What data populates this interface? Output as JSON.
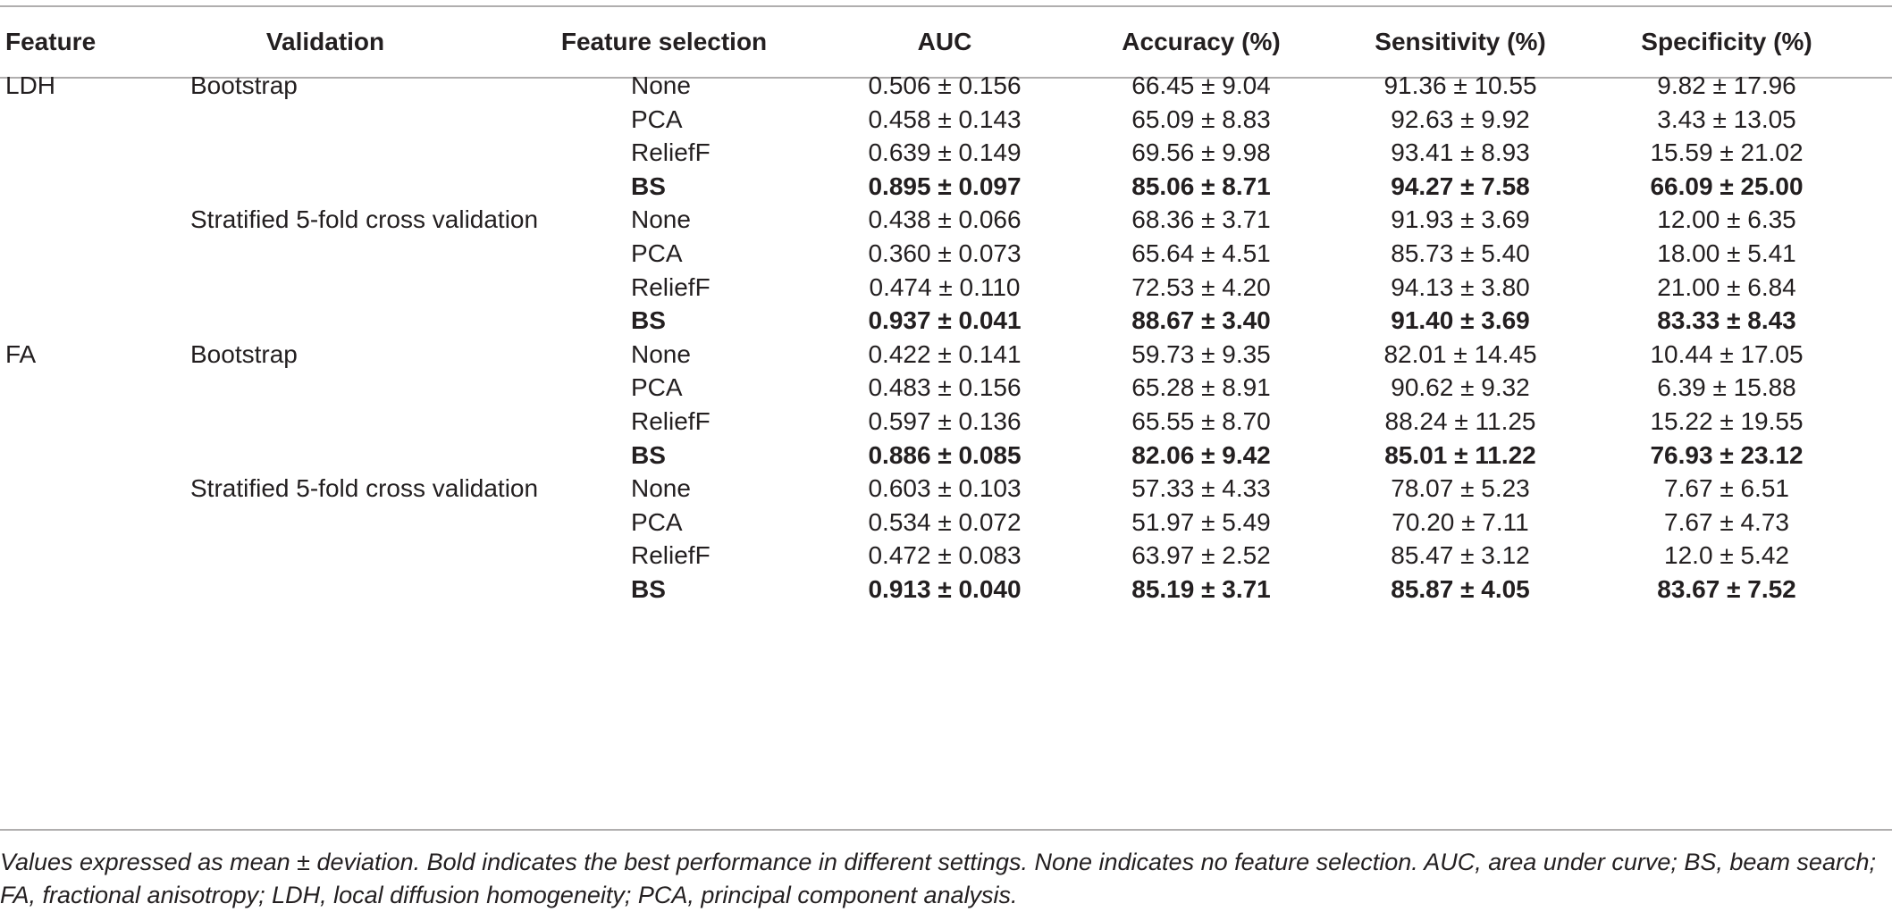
{
  "table": {
    "headers": [
      "Feature",
      "Validation",
      "Feature selection",
      "AUC",
      "Accuracy (%)",
      "Sensitivity (%)",
      "Specificity (%)"
    ],
    "rows": [
      {
        "feature": "LDH",
        "validation": "Bootstrap",
        "selection": "None",
        "auc": "0.506 ± 0.156",
        "accuracy": "66.45 ± 9.04",
        "sensitivity": "91.36 ± 10.55",
        "specificity": "9.82 ± 17.96",
        "bold": false
      },
      {
        "feature": "",
        "validation": "",
        "selection": "PCA",
        "auc": "0.458 ± 0.143",
        "accuracy": "65.09 ± 8.83",
        "sensitivity": "92.63 ± 9.92",
        "specificity": "3.43 ± 13.05",
        "bold": false
      },
      {
        "feature": "",
        "validation": "",
        "selection": "ReliefF",
        "auc": "0.639 ± 0.149",
        "accuracy": "69.56 ± 9.98",
        "sensitivity": "93.41 ± 8.93",
        "specificity": "15.59 ± 21.02",
        "bold": false
      },
      {
        "feature": "",
        "validation": "",
        "selection": "BS",
        "auc": "0.895 ± 0.097",
        "accuracy": "85.06 ± 8.71",
        "sensitivity": "94.27 ± 7.58",
        "specificity": "66.09 ± 25.00",
        "bold": true
      },
      {
        "feature": "",
        "validation": "Stratified 5-fold cross validation",
        "selection": "None",
        "auc": "0.438 ± 0.066",
        "accuracy": "68.36 ± 3.71",
        "sensitivity": "91.93 ± 3.69",
        "specificity": "12.00 ± 6.35",
        "bold": false
      },
      {
        "feature": "",
        "validation": "",
        "selection": "PCA",
        "auc": "0.360 ± 0.073",
        "accuracy": "65.64 ± 4.51",
        "sensitivity": "85.73 ± 5.40",
        "specificity": "18.00 ± 5.41",
        "bold": false
      },
      {
        "feature": "",
        "validation": "",
        "selection": "ReliefF",
        "auc": "0.474 ± 0.110",
        "accuracy": "72.53 ± 4.20",
        "sensitivity": "94.13 ± 3.80",
        "specificity": "21.00 ± 6.84",
        "bold": false
      },
      {
        "feature": "",
        "validation": "",
        "selection": "BS",
        "auc": "0.937 ± 0.041",
        "accuracy": "88.67 ± 3.40",
        "sensitivity": "91.40 ± 3.69",
        "specificity": "83.33 ± 8.43",
        "bold": true
      },
      {
        "feature": "FA",
        "validation": "Bootstrap",
        "selection": "None",
        "auc": "0.422 ± 0.141",
        "accuracy": "59.73 ± 9.35",
        "sensitivity": "82.01 ± 14.45",
        "specificity": "10.44 ± 17.05",
        "bold": false
      },
      {
        "feature": "",
        "validation": "",
        "selection": "PCA",
        "auc": "0.483 ± 0.156",
        "accuracy": "65.28 ± 8.91",
        "sensitivity": "90.62 ± 9.32",
        "specificity": "6.39 ± 15.88",
        "bold": false
      },
      {
        "feature": "",
        "validation": "",
        "selection": "ReliefF",
        "auc": "0.597 ± 0.136",
        "accuracy": "65.55 ± 8.70",
        "sensitivity": "88.24 ± 11.25",
        "specificity": "15.22 ± 19.55",
        "bold": false
      },
      {
        "feature": "",
        "validation": "",
        "selection": "BS",
        "auc": "0.886 ± 0.085",
        "accuracy": "82.06 ± 9.42",
        "sensitivity": "85.01 ± 11.22",
        "specificity": "76.93 ± 23.12",
        "bold": true
      },
      {
        "feature": "",
        "validation": "Stratified 5-fold cross validation",
        "selection": "None",
        "auc": "0.603 ± 0.103",
        "accuracy": "57.33 ± 4.33",
        "sensitivity": "78.07 ± 5.23",
        "specificity": "7.67 ± 6.51",
        "bold": false
      },
      {
        "feature": "",
        "validation": "",
        "selection": "PCA",
        "auc": "0.534 ± 0.072",
        "accuracy": "51.97 ± 5.49",
        "sensitivity": "70.20 ± 7.11",
        "specificity": "7.67 ± 4.73",
        "bold": false
      },
      {
        "feature": "",
        "validation": "",
        "selection": "ReliefF",
        "auc": "0.472 ± 0.083",
        "accuracy": "63.97 ± 2.52",
        "sensitivity": "85.47 ± 3.12",
        "specificity": "12.0 ± 5.42",
        "bold": false
      },
      {
        "feature": "",
        "validation": "",
        "selection": "BS",
        "auc": "0.913 ± 0.040",
        "accuracy": "85.19 ± 3.71",
        "sensitivity": "85.87 ± 4.05",
        "specificity": "83.67 ± 7.52",
        "bold": true
      }
    ]
  },
  "footnote": "Values expressed as mean ± deviation. Bold indicates the best performance in different settings. None indicates no feature selection. AUC, area under curve; BS, beam search; FA, fractional anisotropy; LDH, local diffusion homogeneity; PCA, principal component analysis."
}
